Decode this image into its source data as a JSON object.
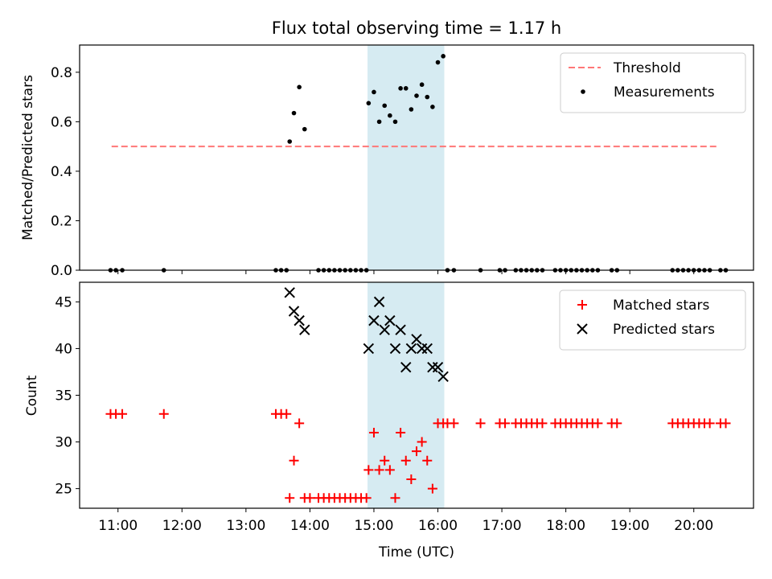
{
  "chart_data": [
    {
      "type": "scatter",
      "title": "Flux total observing time = 1.17 h",
      "xlabel": "",
      "ylabel": "Matched/Predicted stars",
      "xlim": [
        "10:24",
        "20:56"
      ],
      "ylim": [
        0,
        0.91
      ],
      "yticks": [
        "0.0",
        "0.2",
        "0.4",
        "0.6",
        "0.8"
      ],
      "grid": false,
      "legend_position": "top-right",
      "shaded_region": {
        "x_start": "14:54",
        "x_end": "16:06",
        "color": "#add8e6"
      },
      "threshold": {
        "name": "Threshold",
        "y": 0.5,
        "x_start": "10:54",
        "x_end": "20:24",
        "color": "#ff7777",
        "style": "dashed"
      },
      "series": [
        {
          "name": "Measurements",
          "color": "#000000",
          "points": [
            [
              "10:53",
              0
            ],
            [
              "10:58",
              0
            ],
            [
              "11:04",
              0
            ],
            [
              "11:43",
              0
            ],
            [
              "13:28",
              0
            ],
            [
              "13:33",
              0
            ],
            [
              "13:38",
              0
            ],
            [
              "13:41",
              0.52
            ],
            [
              "13:45",
              0.635
            ],
            [
              "13:50",
              0.74
            ],
            [
              "13:55",
              0.57
            ],
            [
              "14:08",
              0
            ],
            [
              "14:13",
              0
            ],
            [
              "14:18",
              0
            ],
            [
              "14:23",
              0
            ],
            [
              "14:28",
              0
            ],
            [
              "14:33",
              0
            ],
            [
              "14:38",
              0
            ],
            [
              "14:43",
              0
            ],
            [
              "14:48",
              0
            ],
            [
              "14:53",
              0
            ],
            [
              "14:55",
              0.675
            ],
            [
              "15:00",
              0.72
            ],
            [
              "15:05",
              0.6
            ],
            [
              "15:10",
              0.665
            ],
            [
              "15:15",
              0.625
            ],
            [
              "15:20",
              0.6
            ],
            [
              "15:25",
              0.735
            ],
            [
              "15:30",
              0.735
            ],
            [
              "15:35",
              0.65
            ],
            [
              "15:40",
              0.705
            ],
            [
              "15:45",
              0.75
            ],
            [
              "15:50",
              0.7
            ],
            [
              "15:55",
              0.66
            ],
            [
              "16:00",
              0.84
            ],
            [
              "16:05",
              0.865
            ],
            [
              "16:09",
              0
            ],
            [
              "16:15",
              0
            ],
            [
              "16:40",
              0
            ],
            [
              "16:58",
              0
            ],
            [
              "17:03",
              0
            ],
            [
              "17:13",
              0
            ],
            [
              "17:18",
              0
            ],
            [
              "17:23",
              0
            ],
            [
              "17:28",
              0
            ],
            [
              "17:33",
              0
            ],
            [
              "17:38",
              0
            ],
            [
              "17:50",
              0
            ],
            [
              "17:55",
              0
            ],
            [
              "18:00",
              0
            ],
            [
              "18:05",
              0
            ],
            [
              "18:10",
              0
            ],
            [
              "18:15",
              0
            ],
            [
              "18:20",
              0
            ],
            [
              "18:25",
              0
            ],
            [
              "18:30",
              0
            ],
            [
              "18:43",
              0
            ],
            [
              "18:48",
              0
            ],
            [
              "19:40",
              0
            ],
            [
              "19:45",
              0
            ],
            [
              "19:50",
              0
            ],
            [
              "19:55",
              0
            ],
            [
              "20:00",
              0
            ],
            [
              "20:05",
              0
            ],
            [
              "20:10",
              0
            ],
            [
              "20:15",
              0
            ],
            [
              "20:25",
              0
            ],
            [
              "20:30",
              0
            ]
          ]
        }
      ]
    },
    {
      "type": "scatter",
      "title": "",
      "xlabel": "Time (UTC)",
      "ylabel": "Count",
      "xlim": [
        "10:24",
        "20:56"
      ],
      "ylim": [
        22.9,
        47.1
      ],
      "yticks": [
        "25",
        "30",
        "35",
        "40",
        "45"
      ],
      "xticks": [
        "11:00",
        "12:00",
        "13:00",
        "14:00",
        "15:00",
        "16:00",
        "17:00",
        "18:00",
        "19:00",
        "20:00"
      ],
      "grid": false,
      "legend_position": "top-right",
      "shaded_region": {
        "x_start": "14:54",
        "x_end": "16:06",
        "color": "#add8e6"
      },
      "series": [
        {
          "name": "Matched stars",
          "color": "#ff0000",
          "marker": "plus",
          "points": [
            [
              "10:53",
              33
            ],
            [
              "10:58",
              33
            ],
            [
              "11:04",
              33
            ],
            [
              "11:43",
              33
            ],
            [
              "13:28",
              33
            ],
            [
              "13:33",
              33
            ],
            [
              "13:38",
              33
            ],
            [
              "13:41",
              24
            ],
            [
              "13:45",
              28
            ],
            [
              "13:50",
              32
            ],
            [
              "13:55",
              24
            ],
            [
              "14:00",
              24
            ],
            [
              "14:08",
              24
            ],
            [
              "14:13",
              24
            ],
            [
              "14:18",
              24
            ],
            [
              "14:23",
              24
            ],
            [
              "14:28",
              24
            ],
            [
              "14:33",
              24
            ],
            [
              "14:38",
              24
            ],
            [
              "14:43",
              24
            ],
            [
              "14:48",
              24
            ],
            [
              "14:53",
              24
            ],
            [
              "14:55",
              27
            ],
            [
              "15:00",
              31
            ],
            [
              "15:05",
              27
            ],
            [
              "15:10",
              28
            ],
            [
              "15:15",
              27
            ],
            [
              "15:20",
              24
            ],
            [
              "15:25",
              31
            ],
            [
              "15:30",
              28
            ],
            [
              "15:35",
              26
            ],
            [
              "15:40",
              29
            ],
            [
              "15:45",
              30
            ],
            [
              "15:50",
              28
            ],
            [
              "15:55",
              25
            ],
            [
              "16:00",
              32
            ],
            [
              "16:05",
              32
            ],
            [
              "16:09",
              32
            ],
            [
              "16:15",
              32
            ],
            [
              "16:40",
              32
            ],
            [
              "16:58",
              32
            ],
            [
              "17:03",
              32
            ],
            [
              "17:13",
              32
            ],
            [
              "17:18",
              32
            ],
            [
              "17:23",
              32
            ],
            [
              "17:28",
              32
            ],
            [
              "17:33",
              32
            ],
            [
              "17:38",
              32
            ],
            [
              "17:50",
              32
            ],
            [
              "17:55",
              32
            ],
            [
              "18:00",
              32
            ],
            [
              "18:05",
              32
            ],
            [
              "18:10",
              32
            ],
            [
              "18:15",
              32
            ],
            [
              "18:20",
              32
            ],
            [
              "18:25",
              32
            ],
            [
              "18:30",
              32
            ],
            [
              "18:43",
              32
            ],
            [
              "18:48",
              32
            ],
            [
              "19:40",
              32
            ],
            [
              "19:45",
              32
            ],
            [
              "19:50",
              32
            ],
            [
              "19:55",
              32
            ],
            [
              "20:00",
              32
            ],
            [
              "20:05",
              32
            ],
            [
              "20:10",
              32
            ],
            [
              "20:15",
              32
            ],
            [
              "20:25",
              32
            ],
            [
              "20:30",
              32
            ]
          ]
        },
        {
          "name": "Predicted stars",
          "color": "#000000",
          "marker": "x",
          "points": [
            [
              "13:41",
              46
            ],
            [
              "13:45",
              44
            ],
            [
              "13:50",
              43
            ],
            [
              "13:55",
              42
            ],
            [
              "14:55",
              40
            ],
            [
              "15:00",
              43
            ],
            [
              "15:05",
              45
            ],
            [
              "15:10",
              42
            ],
            [
              "15:15",
              43
            ],
            [
              "15:20",
              40
            ],
            [
              "15:25",
              42
            ],
            [
              "15:30",
              38
            ],
            [
              "15:35",
              40
            ],
            [
              "15:40",
              41
            ],
            [
              "15:45",
              40
            ],
            [
              "15:50",
              40
            ],
            [
              "15:55",
              38
            ],
            [
              "16:00",
              38
            ],
            [
              "16:05",
              37
            ]
          ]
        }
      ]
    }
  ]
}
